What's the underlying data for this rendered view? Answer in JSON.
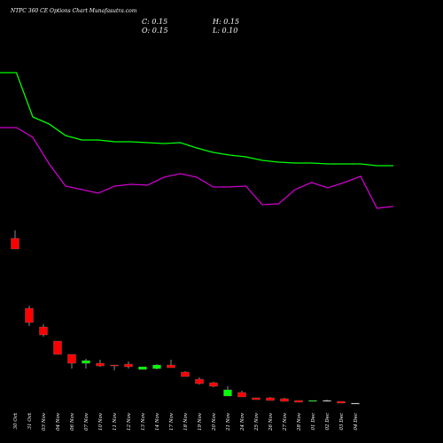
{
  "chart_data": {
    "type": "candlestick",
    "title": "NTPC 360 CE Options Chart Munafasutra.com",
    "info": [
      "C: 0.15",
      "H: 0.15",
      "O: 0.15",
      "L: 0.10"
    ],
    "categories": [
      "30 Oct",
      "31 Oct",
      "03 Nov",
      "04 Nov",
      "06 Nov",
      "07 Nov",
      "10 Nov",
      "11 Nov",
      "12 Nov",
      "13 Nov",
      "14 Nov",
      "17 Nov",
      "18 Nov",
      "19 Nov",
      "20 Nov",
      "21 Nov",
      "24 Nov",
      "25 Nov",
      "26 Nov",
      "27 Nov",
      "28 Nov",
      "01 Dec",
      "02 Dec",
      "03 Dec",
      "04 Dec"
    ],
    "open": [
      9.45,
      5.5,
      4.45,
      3.65,
      2.9,
      2.4,
      2.4,
      2.3,
      2.35,
      2.05,
      2.1,
      2.3,
      1.9,
      1.5,
      1.3,
      0.55,
      0.75,
      0.45,
      0.45,
      0.4,
      0.3,
      0.25,
      0.3,
      0.25,
      0.15
    ],
    "high": [
      9.9,
      5.65,
      4.6,
      3.65,
      2.9,
      2.65,
      2.6,
      2.3,
      2.5,
      2.2,
      2.35,
      2.6,
      1.95,
      1.6,
      1.35,
      1.1,
      0.85,
      0.45,
      0.5,
      0.45,
      0.3,
      0.3,
      0.35,
      0.25,
      0.15
    ],
    "low": [
      8.85,
      4.5,
      3.9,
      2.9,
      2.1,
      2.1,
      2.2,
      2.0,
      2.1,
      2.05,
      2.05,
      2.15,
      1.65,
      1.2,
      1.05,
      0.55,
      0.5,
      0.35,
      0.3,
      0.25,
      0.2,
      0.25,
      0.25,
      0.15,
      0.1
    ],
    "close": [
      8.85,
      4.7,
      4.0,
      2.9,
      2.4,
      2.55,
      2.25,
      2.25,
      2.2,
      2.2,
      2.3,
      2.15,
      1.65,
      1.25,
      1.1,
      0.9,
      0.5,
      0.35,
      0.3,
      0.25,
      0.2,
      0.3,
      0.3,
      0.15,
      0.15
    ],
    "up_color": "#00ff00",
    "down_color": "#ff0000",
    "lines": [
      {
        "color": "#00ff00",
        "values": [
          18.8,
          18.8,
          16.3,
          15.9,
          15.25,
          15.0,
          15.0,
          14.9,
          14.9,
          14.85,
          14.8,
          14.85,
          14.55,
          14.3,
          14.15,
          14.05,
          13.85,
          13.75,
          13.7,
          13.7,
          13.65,
          13.65,
          13.65,
          13.55,
          13.55
        ]
      },
      {
        "color": "#cc00cc",
        "values": [
          15.7,
          15.7,
          15.15,
          13.65,
          12.4,
          12.2,
          12.0,
          12.4,
          12.5,
          12.45,
          12.9,
          13.1,
          12.9,
          12.35,
          12.35,
          12.4,
          11.35,
          11.4,
          12.2,
          12.6,
          12.3,
          12.6,
          12.95,
          11.15,
          11.25
        ]
      }
    ],
    "ylim": [
      0,
      22.9
    ]
  }
}
